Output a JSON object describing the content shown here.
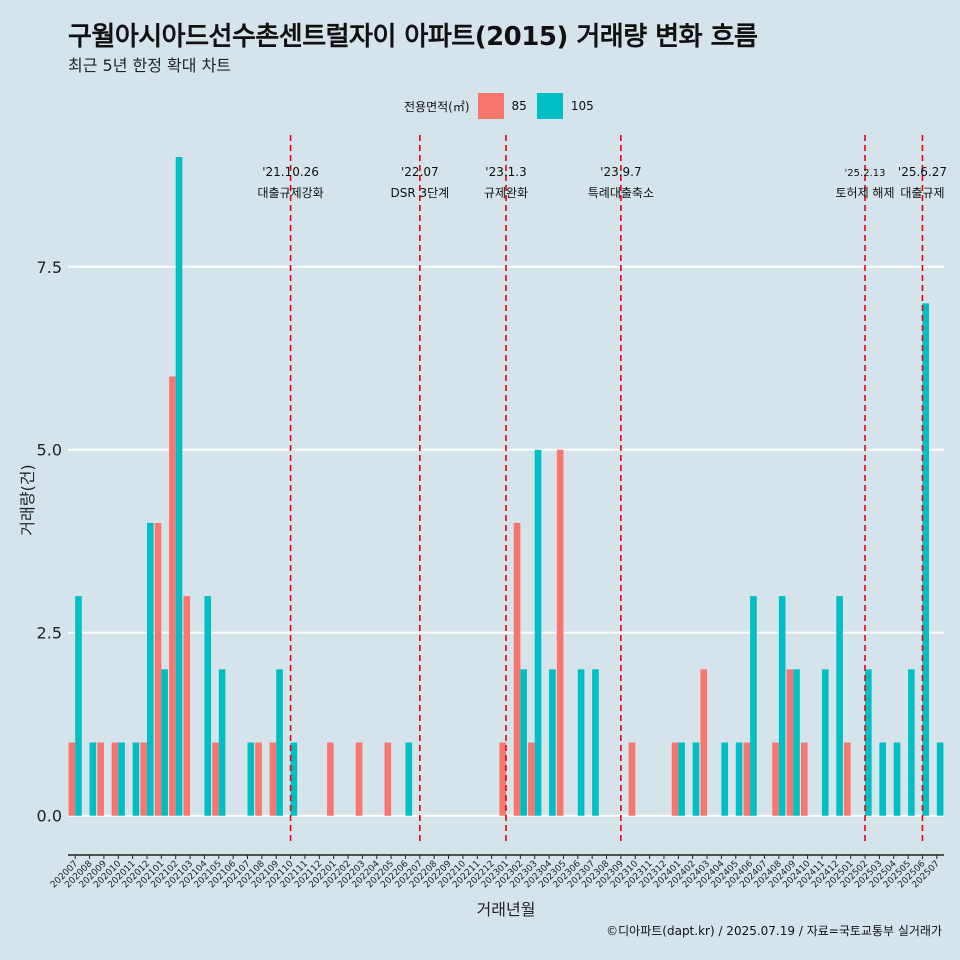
{
  "title": "구월아시아드선수촌센트럴자이 아파트(2015) 거래량 변화 흐름",
  "subtitle": "최근 5년 한정 확대 차트",
  "caption": "©디아파트(dapt.kr) / 2025.07.19 / 자료=국토교통부 실거래가",
  "legend": {
    "title": "전용면적(㎡)",
    "items": [
      {
        "label": "85",
        "color": "#F8766D"
      },
      {
        "label": "105",
        "color": "#00BFC4"
      }
    ]
  },
  "chart_data": {
    "type": "bar",
    "xlabel": "거래년월",
    "ylabel": "거래량(건)",
    "ylim": [
      -0.4,
      9.3
    ],
    "yticks": [
      0.0,
      2.5,
      5.0,
      7.5
    ],
    "ytick_labels": [
      "0.0",
      "2.5",
      "5.0",
      "7.5"
    ],
    "grid": true,
    "legend_position": "top",
    "categories": [
      "202007",
      "202008",
      "202009",
      "202010",
      "202011",
      "202012",
      "202101",
      "202102",
      "202103",
      "202104",
      "202105",
      "202106",
      "202107",
      "202108",
      "202109",
      "202110",
      "202111",
      "202112",
      "202201",
      "202202",
      "202203",
      "202204",
      "202205",
      "202206",
      "202207",
      "202208",
      "202209",
      "202210",
      "202211",
      "202212",
      "202301",
      "202302",
      "202303",
      "202304",
      "202305",
      "202306",
      "202307",
      "202308",
      "202309",
      "202310",
      "202311",
      "202312",
      "202401",
      "202402",
      "202403",
      "202404",
      "202405",
      "202406",
      "202407",
      "202408",
      "202409",
      "202410",
      "202411",
      "202412",
      "202501",
      "202502",
      "202503",
      "202504",
      "202505",
      "202506",
      "202507"
    ],
    "series": [
      {
        "name": "85",
        "color": "#F8766D",
        "values": [
          1,
          0,
          1,
          1,
          0,
          1,
          4,
          6,
          3,
          0,
          1,
          0,
          0,
          1,
          1,
          0,
          0,
          0,
          1,
          0,
          1,
          0,
          1,
          0,
          0,
          0,
          0,
          0,
          0,
          0,
          1,
          4,
          1,
          0,
          5,
          0,
          0,
          0,
          0,
          1,
          0,
          0,
          1,
          0,
          2,
          0,
          0,
          1,
          0,
          1,
          2,
          1,
          0,
          0,
          1,
          0,
          0,
          0,
          0,
          0,
          0
        ]
      },
      {
        "name": "105",
        "color": "#00BFC4",
        "values": [
          3,
          1,
          0,
          1,
          1,
          4,
          2,
          9,
          0,
          3,
          2,
          0,
          1,
          0,
          2,
          1,
          0,
          0,
          0,
          0,
          0,
          0,
          0,
          1,
          0,
          0,
          0,
          0,
          0,
          0,
          0,
          2,
          5,
          2,
          0,
          2,
          2,
          0,
          0,
          0,
          0,
          0,
          1,
          1,
          0,
          1,
          1,
          3,
          0,
          3,
          2,
          0,
          2,
          3,
          0,
          2,
          1,
          1,
          2,
          7,
          1
        ]
      }
    ],
    "events": [
      {
        "date": "'21.10.26",
        "label": "대출규제강화",
        "at": "202110"
      },
      {
        "date": "'22.07",
        "label": "DSR 3단계",
        "at": "202207"
      },
      {
        "date": "'23.1.3",
        "label": "규제완화",
        "at": "202301"
      },
      {
        "date": "'23.9.7",
        "label": "특례대출축소",
        "at": "202309"
      },
      {
        "date": "'25.2.13",
        "label": "토허제 해제",
        "at": "202502"
      },
      {
        "date": "'25.6.27",
        "label": "대출규제",
        "at": "202506"
      }
    ]
  }
}
